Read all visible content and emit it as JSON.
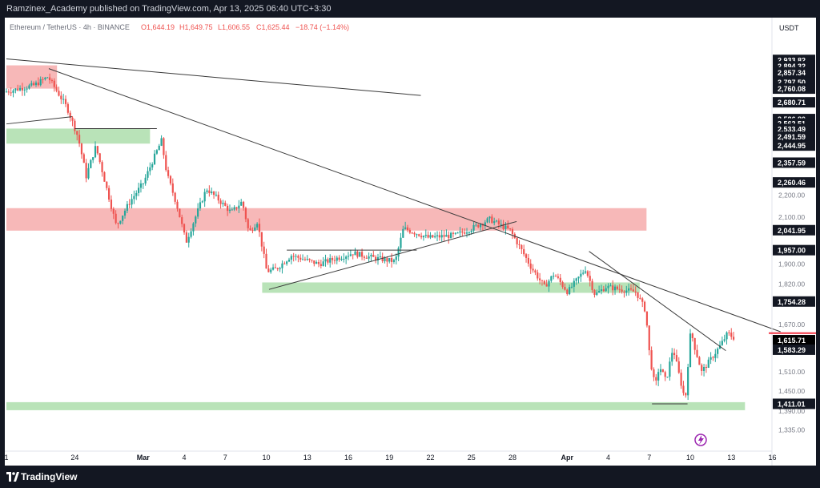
{
  "window": {
    "published_line": "Ramzinex_Academy published on TradingView.com, Apr 13, 2025 06:40 UTC+3:30",
    "footer_brand": "TradingView"
  },
  "legend": {
    "symbol": "Ethereum / TetherUS · 4h · BINANCE",
    "open": "O1,644.19",
    "high": "H1,649.75",
    "low": "L1,606.55",
    "close": "C1,625.44",
    "change": "−18.74 (−1.14%)"
  },
  "price_axis": {
    "currency": "USDT",
    "tick_labels": [
      "2,200.00",
      "2,100.00",
      "1,900.00",
      "1,820.00",
      "1,670.00",
      "1,510.00",
      "1,450.00",
      "1,390.00",
      "1,335.00"
    ],
    "boxed_labels": [
      {
        "value": 2933.82,
        "text": "2,933.82"
      },
      {
        "value": 2894.32,
        "text": "2,894.32"
      },
      {
        "value": 2857.34,
        "text": "2,857.34"
      },
      {
        "value": 2797.5,
        "text": "2,797.50"
      },
      {
        "value": 2760.08,
        "text": "2,760.08"
      },
      {
        "value": 2680.71,
        "text": "2,680.71"
      },
      {
        "value": 2586.8,
        "text": "2,586.80"
      },
      {
        "value": 2562.51,
        "text": "2,562.51"
      },
      {
        "value": 2533.49,
        "text": "2,533.49"
      },
      {
        "value": 2491.59,
        "text": "2,491.59"
      },
      {
        "value": 2444.95,
        "text": "2,444.95"
      },
      {
        "value": 2357.59,
        "text": "2,357.59"
      },
      {
        "value": 2260.46,
        "text": "2,260.46"
      },
      {
        "value": 2041.95,
        "text": "2,041.95"
      },
      {
        "value": 1957.0,
        "text": "1,957.00"
      },
      {
        "value": 1754.28,
        "text": "1,754.28"
      },
      {
        "value": 1615.71,
        "text": "1,615.71",
        "color": "#000000"
      },
      {
        "value": 1583.29,
        "text": "1,583.29"
      },
      {
        "value": 1411.01,
        "text": "1,411.01"
      }
    ]
  },
  "time_axis": {
    "labels": [
      {
        "day": 0,
        "text": "1"
      },
      {
        "day": 5,
        "text": "24"
      },
      {
        "day": 10,
        "text": "Mar",
        "bold": true
      },
      {
        "day": 13,
        "text": "4"
      },
      {
        "day": 16,
        "text": "7"
      },
      {
        "day": 19,
        "text": "10"
      },
      {
        "day": 22,
        "text": "13"
      },
      {
        "day": 25,
        "text": "16"
      },
      {
        "day": 28,
        "text": "19"
      },
      {
        "day": 31,
        "text": "22"
      },
      {
        "day": 34,
        "text": "25"
      },
      {
        "day": 37,
        "text": "28"
      },
      {
        "day": 41,
        "text": "Apr",
        "bold": true
      },
      {
        "day": 44,
        "text": "4"
      },
      {
        "day": 47,
        "text": "7"
      },
      {
        "day": 50,
        "text": "10"
      },
      {
        "day": 53,
        "text": "13"
      },
      {
        "day": 56,
        "text": "16"
      }
    ]
  },
  "colors": {
    "up": "#26a69a",
    "down": "#ef5350",
    "resistance_zone": "#f7b8b8",
    "support_zone": "#b9e3b8",
    "last_price": "#f23645"
  },
  "chart_data": {
    "type": "candlestick",
    "symbol": "ETH/USDT",
    "interval": "4h",
    "timeframe": "Feb 21 – Apr 13, 2025",
    "y_scale": "log",
    "ylim": [
      1300,
      3050
    ],
    "last_close": 1625.44,
    "path_points": [
      [
        0.0,
        2740
      ],
      [
        2.2,
        2780
      ],
      [
        3.2,
        2830
      ],
      [
        4.6,
        2650
      ],
      [
        5.4,
        2490
      ],
      [
        6.0,
        2290
      ],
      [
        6.7,
        2440
      ],
      [
        7.5,
        2230
      ],
      [
        8.2,
        2060
      ],
      [
        9.2,
        2170
      ],
      [
        10.2,
        2260
      ],
      [
        11.5,
        2470
      ],
      [
        11.9,
        2300
      ],
      [
        12.6,
        2160
      ],
      [
        13.3,
        1990
      ],
      [
        14.8,
        2230
      ],
      [
        15.5,
        2190
      ],
      [
        16.6,
        2120
      ],
      [
        17.4,
        2170
      ],
      [
        17.9,
        2030
      ],
      [
        18.5,
        2080
      ],
      [
        19.2,
        1870
      ],
      [
        19.9,
        1880
      ],
      [
        21.0,
        1935
      ],
      [
        23.0,
        1900
      ],
      [
        25.5,
        1945
      ],
      [
        27.0,
        1925
      ],
      [
        28.6,
        1910
      ],
      [
        29.2,
        2050
      ],
      [
        31.0,
        2010
      ],
      [
        33.0,
        2020
      ],
      [
        34.2,
        2050
      ],
      [
        35.5,
        2090
      ],
      [
        37.0,
        2040
      ],
      [
        37.6,
        1980
      ],
      [
        38.5,
        1890
      ],
      [
        39.5,
        1810
      ],
      [
        40.2,
        1860
      ],
      [
        41.2,
        1790
      ],
      [
        42.5,
        1880
      ],
      [
        43.2,
        1780
      ],
      [
        44.0,
        1810
      ],
      [
        46.2,
        1790
      ],
      [
        46.9,
        1720
      ],
      [
        47.2,
        1560
      ],
      [
        47.6,
        1460
      ],
      [
        47.9,
        1530
      ],
      [
        48.4,
        1480
      ],
      [
        48.9,
        1590
      ],
      [
        49.4,
        1490
      ],
      [
        49.8,
        1420
      ],
      [
        50.2,
        1650
      ],
      [
        50.5,
        1590
      ],
      [
        51.0,
        1510
      ],
      [
        51.8,
        1560
      ],
      [
        52.4,
        1600
      ],
      [
        52.9,
        1640
      ],
      [
        53.3,
        1625
      ]
    ]
  },
  "annotations": {
    "zones": [
      {
        "kind": "resistance",
        "x0": 0,
        "x1": 3.7,
        "y0": 2760,
        "y1": 2900
      },
      {
        "kind": "support",
        "x0": 0,
        "x1": 10.5,
        "y0": 2455,
        "y1": 2535
      },
      {
        "kind": "resistance",
        "x0": 0,
        "x1": 46.8,
        "y0": 2040,
        "y1": 2140
      },
      {
        "kind": "support",
        "x0": 18.7,
        "x1": 46.3,
        "y0": 1787,
        "y1": 1827
      },
      {
        "kind": "support",
        "x0": 0,
        "x1": 54,
        "y0": 1392,
        "y1": 1416
      }
    ],
    "trendlines": [
      {
        "x0": 0,
        "y0": 2940,
        "x1": 30.3,
        "y1": 2720
      },
      {
        "x0": 3.1,
        "y0": 2880,
        "x1": 56.6,
        "y1": 1645
      },
      {
        "x0": 0,
        "y0": 2560,
        "x1": 4.8,
        "y1": 2600
      },
      {
        "x0": 19.2,
        "y0": 1800,
        "x1": 37.3,
        "y1": 2080
      },
      {
        "x0": 42.6,
        "y0": 1952,
        "x1": 52.6,
        "y1": 1580
      },
      {
        "x0": 5.0,
        "y0": 2535,
        "x1": 11.0,
        "y1": 2535
      },
      {
        "x0": 20.5,
        "y0": 1957,
        "x1": 30.0,
        "y1": 1957
      },
      {
        "x0": 47.2,
        "y0": 1411,
        "x1": 49.8,
        "y1": 1411
      }
    ]
  }
}
